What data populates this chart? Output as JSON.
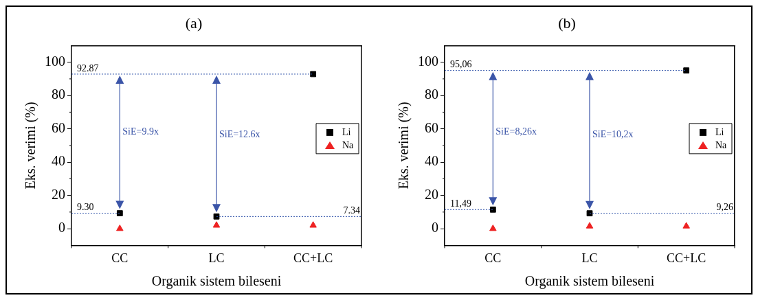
{
  "chart_data": [
    {
      "type": "scatter",
      "title": "(a)",
      "xlabel": "Organik sistem bileseni",
      "ylabel": "Eks. verimi (%)",
      "categories": [
        "CC",
        "LC",
        "CC+LC"
      ],
      "series": [
        {
          "name": "Li",
          "color": "#000000",
          "marker": "square",
          "values": [
            9.3,
            7.34,
            92.87
          ]
        },
        {
          "name": "Na",
          "color": "#ee2222",
          "marker": "triangle",
          "values": [
            0,
            2,
            2
          ]
        }
      ],
      "ylim": [
        -10,
        110
      ],
      "yticks": [
        0,
        20,
        40,
        60,
        80,
        100
      ],
      "legend": "right",
      "grid": false,
      "ref_lines": [
        {
          "axis": "y",
          "value": 92.87,
          "label": "92.87",
          "color": "#3355aa",
          "line_style": "dotted"
        },
        {
          "axis": "y",
          "value": 9.3,
          "label": "9.30",
          "color": "#3355aa",
          "line_style": "dotted"
        },
        {
          "axis": "y",
          "value": 7.34,
          "label": "7.34",
          "color": "#3355aa",
          "line_style": "dotted"
        }
      ],
      "annotations": [
        "SiE=9.9x",
        "SiE=12.6x"
      ]
    },
    {
      "type": "scatter",
      "title": "(b)",
      "xlabel": "Organik sistem bileseni",
      "ylabel": "Eks. verimi (%)",
      "categories": [
        "CC",
        "LC",
        "CC+LC"
      ],
      "series": [
        {
          "name": "Li",
          "color": "#000000",
          "marker": "square",
          "values": [
            11.49,
            9.26,
            95.06
          ]
        },
        {
          "name": "Na",
          "color": "#ee2222",
          "marker": "triangle",
          "values": [
            0,
            1.5,
            1.5
          ]
        }
      ],
      "ylim": [
        -10,
        110
      ],
      "yticks": [
        0,
        20,
        40,
        60,
        80,
        100
      ],
      "legend": "right",
      "grid": false,
      "ref_lines": [
        {
          "axis": "y",
          "value": 95.06,
          "label": "95,06",
          "color": "#3355aa",
          "line_style": "dotted"
        },
        {
          "axis": "y",
          "value": 11.49,
          "label": "11,49",
          "color": "#3355aa",
          "line_style": "dotted"
        },
        {
          "axis": "y",
          "value": 9.26,
          "label": "9,26",
          "color": "#3355aa",
          "line_style": "dotted"
        }
      ],
      "annotations": [
        "SiE=8,26x",
        "SiE=10,2x"
      ]
    }
  ]
}
